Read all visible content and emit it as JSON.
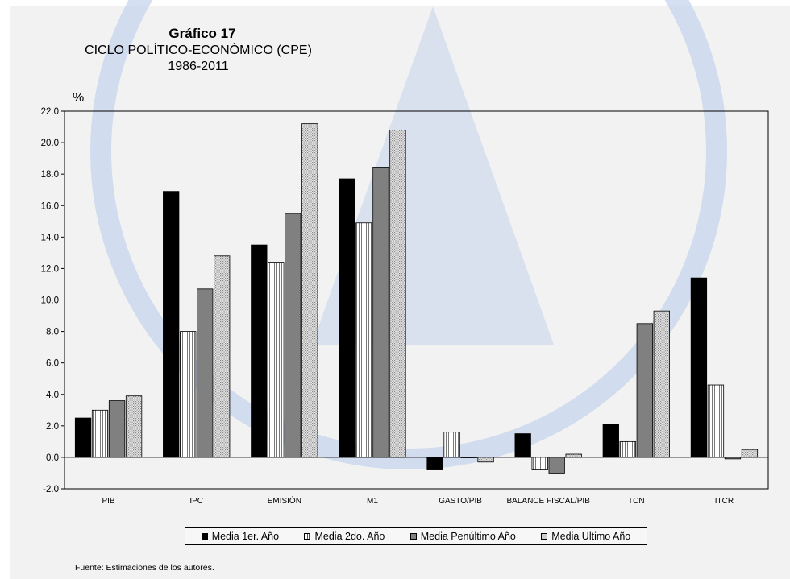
{
  "title": "Gráfico 17",
  "subtitle": "CICLO POLÍTICO-ECONÓMICO (CPE)",
  "period": "1986-2011",
  "unit": "%",
  "source": "Fuente: Estimaciones de los autores.",
  "chart_data": {
    "type": "bar",
    "title": "Gráfico 17",
    "ylabel": "%",
    "ylim": [
      -2.0,
      22.0
    ],
    "ytick_step": 2.0,
    "ytick_labels": [
      "-2.0",
      "0.0",
      "2.0",
      "4.0",
      "6.0",
      "8.0",
      "10.0",
      "12.0",
      "14.0",
      "16.0",
      "18.0",
      "20.0",
      "22.0"
    ],
    "grid": false,
    "legend_placement": "bottom",
    "categories": [
      "PIB",
      "IPC",
      "EMISIÓN",
      "M1",
      "GASTO/PIB",
      "BALANCE FISCAL/PIB",
      "TCN",
      "ITCR"
    ],
    "series": [
      {
        "name": "Media 1er. Año",
        "color": "#000000",
        "pattern": "solid",
        "values": [
          2.5,
          16.9,
          13.5,
          17.7,
          -0.8,
          1.5,
          2.1,
          11.4
        ]
      },
      {
        "name": "Media 2do. Año",
        "color": "#ffffff",
        "pattern": "vertical-lines",
        "values": [
          3.0,
          8.0,
          12.4,
          14.9,
          1.6,
          -0.8,
          1.0,
          4.6
        ]
      },
      {
        "name": "Media Penúltimo Año",
        "color": "#808080",
        "pattern": "solid",
        "values": [
          3.6,
          10.7,
          15.5,
          18.4,
          0.0,
          -1.0,
          8.5,
          -0.1
        ]
      },
      {
        "name": "Media Ultimo Año",
        "color": "#d9d9d9",
        "pattern": "dots",
        "values": [
          3.9,
          12.8,
          21.2,
          20.8,
          -0.3,
          0.2,
          9.3,
          0.5
        ]
      }
    ]
  }
}
